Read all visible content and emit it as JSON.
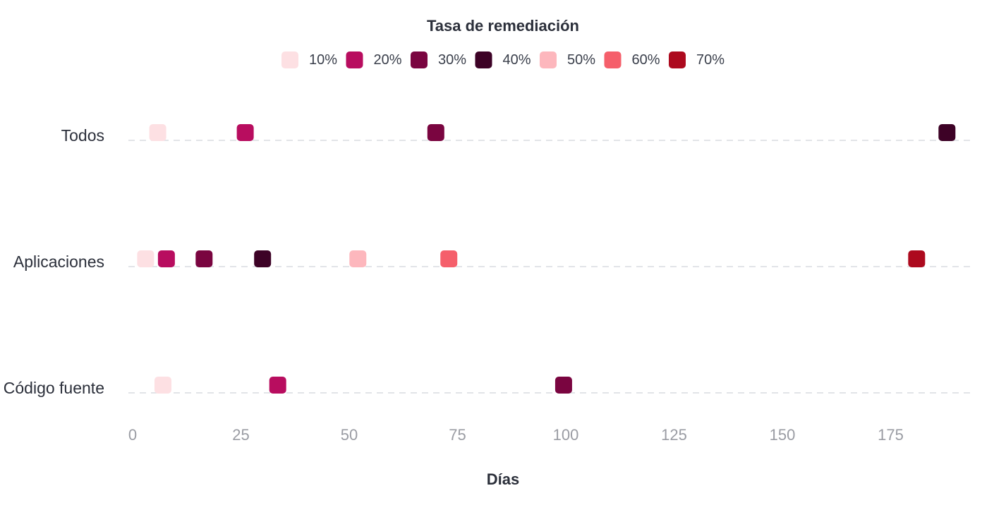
{
  "chart_data": {
    "type": "scatter",
    "legend_title": "Tasa de remediación",
    "legend_position": "top-center",
    "xlabel": "Días",
    "xlim": [
      0,
      195
    ],
    "xticks": [
      0,
      25,
      50,
      75,
      100,
      125,
      150,
      175
    ],
    "categories": [
      "Todos",
      "Aplicaciones",
      "Código fuente"
    ],
    "grid": "horizontal dashed",
    "series": [
      {
        "name": "10%",
        "color": "#fde0e3",
        "values": [
          5.8,
          3.0,
          7.0
        ]
      },
      {
        "name": "20%",
        "color": "#b80d5f",
        "values": [
          26.0,
          7.8,
          33.5
        ]
      },
      {
        "name": "30%",
        "color": "#7a0540",
        "values": [
          70.0,
          16.5,
          99.5
        ]
      },
      {
        "name": "40%",
        "color": "#3d0226",
        "values": [
          188.0,
          30.0,
          null
        ]
      },
      {
        "name": "50%",
        "color": "#fdb7bd",
        "values": [
          null,
          52.0,
          null
        ]
      },
      {
        "name": "60%",
        "color": "#f55f6b",
        "values": [
          null,
          73.0,
          null
        ]
      },
      {
        "name": "70%",
        "color": "#ad0a1e",
        "values": [
          null,
          181.0,
          null
        ]
      }
    ]
  }
}
